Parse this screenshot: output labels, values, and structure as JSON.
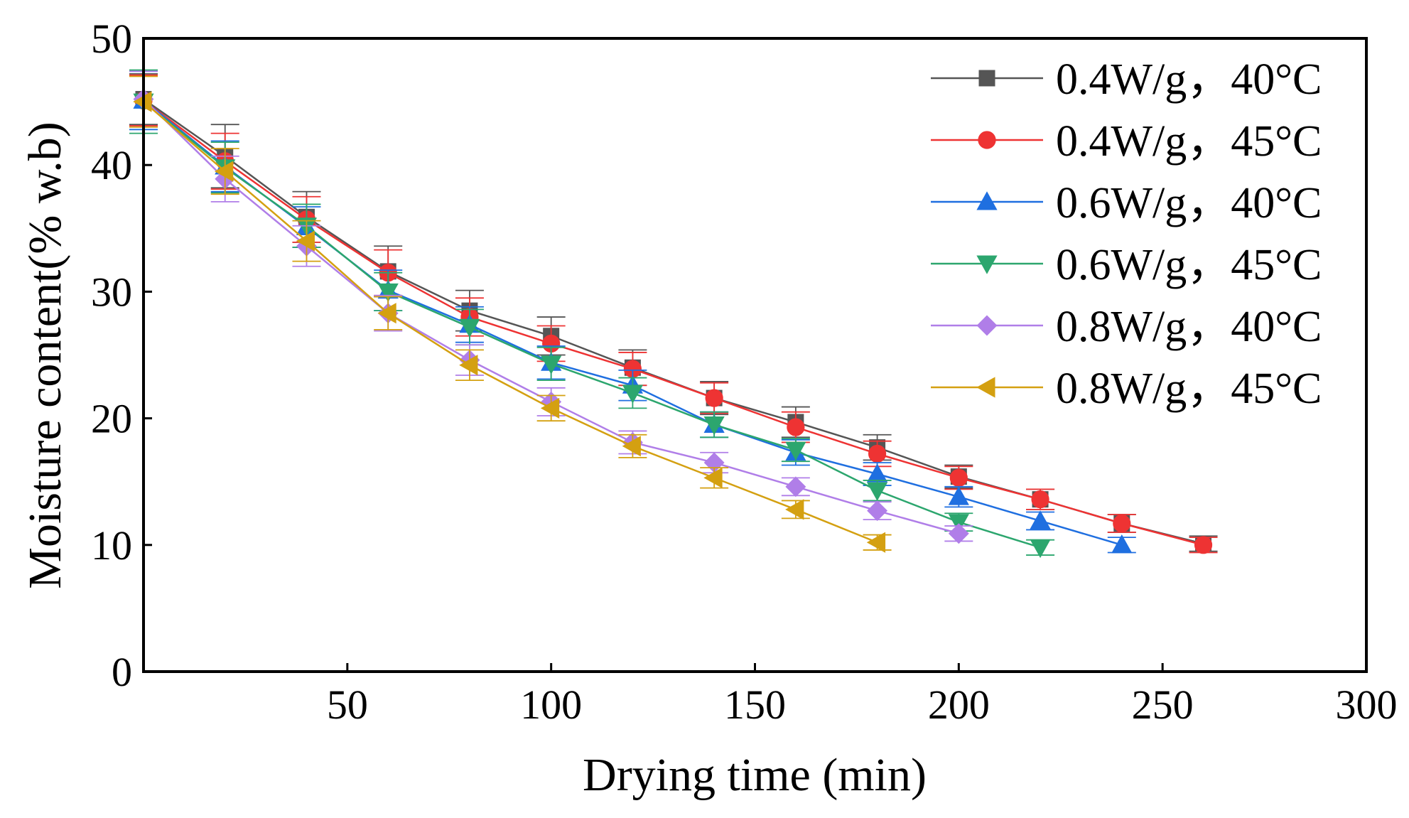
{
  "chart_data": {
    "type": "line",
    "title": "",
    "xlabel": "Drying time (min)",
    "ylabel": "Moisture content(% w.b)",
    "xlim": [
      0,
      300
    ],
    "ylim": [
      0,
      50
    ],
    "xticks": [
      50,
      100,
      150,
      200,
      250,
      300
    ],
    "yticks": [
      0,
      10,
      20,
      30,
      40,
      50
    ],
    "xtick_labels": [
      "50",
      "100",
      "150",
      "200",
      "250",
      "300"
    ],
    "ytick_labels": [
      "0",
      "10",
      "20",
      "30",
      "40",
      "50"
    ],
    "grid": false,
    "legend_position": "top-right",
    "series": [
      {
        "name": "0.4W/g，40°C",
        "color": "#555555",
        "marker": "square",
        "x": [
          0,
          20,
          40,
          60,
          80,
          100,
          120,
          140,
          160,
          180,
          200,
          220,
          240,
          260
        ],
        "y": [
          45.2,
          40.7,
          35.9,
          31.6,
          28.5,
          26.5,
          24.0,
          21.6,
          19.7,
          17.7,
          15.4,
          13.6,
          11.7,
          10.1
        ],
        "err": [
          2.0,
          2.5,
          2.0,
          2.0,
          1.6,
          1.5,
          1.4,
          1.3,
          1.2,
          1.0,
          0.9,
          0.8,
          0.7,
          0.6
        ]
      },
      {
        "name": "0.4W/g，45°C",
        "color": "#ee3333",
        "marker": "circle",
        "x": [
          0,
          20,
          40,
          60,
          80,
          100,
          120,
          140,
          160,
          180,
          200,
          220,
          240,
          260
        ],
        "y": [
          45.1,
          40.3,
          35.7,
          31.5,
          28.0,
          25.9,
          23.9,
          21.6,
          19.3,
          17.2,
          15.3,
          13.6,
          11.7,
          10.0
        ],
        "err": [
          2.0,
          2.2,
          1.8,
          1.8,
          1.5,
          1.4,
          1.3,
          1.2,
          1.2,
          1.0,
          0.9,
          0.8,
          0.7,
          0.6
        ]
      },
      {
        "name": "0.6W/g，40°C",
        "color": "#1f6fe0",
        "marker": "triangle-up",
        "x": [
          0,
          20,
          40,
          60,
          80,
          100,
          120,
          140,
          160,
          180,
          200,
          220,
          240
        ],
        "y": [
          45.1,
          39.9,
          35.1,
          30.1,
          27.4,
          24.4,
          22.6,
          19.5,
          17.3,
          15.6,
          13.8,
          11.9,
          10.0
        ],
        "err": [
          2.3,
          2.0,
          1.6,
          1.6,
          1.4,
          1.3,
          1.2,
          1.0,
          1.0,
          0.9,
          0.8,
          0.7,
          0.6
        ]
      },
      {
        "name": "0.6W/g，45°C",
        "color": "#2ca66e",
        "marker": "triangle-down",
        "x": [
          0,
          20,
          40,
          60,
          80,
          100,
          120,
          140,
          160,
          180,
          200,
          220
        ],
        "y": [
          45.0,
          39.8,
          35.2,
          30.0,
          27.2,
          24.3,
          22.0,
          19.5,
          17.5,
          14.3,
          11.8,
          9.8
        ],
        "err": [
          2.5,
          2.0,
          1.7,
          1.5,
          1.4,
          1.3,
          1.2,
          1.0,
          0.9,
          0.8,
          0.7,
          0.6
        ]
      },
      {
        "name": "0.8W/g，40°C",
        "color": "#b07ee8",
        "marker": "diamond",
        "x": [
          0,
          20,
          40,
          60,
          80,
          100,
          120,
          140,
          160,
          180,
          200
        ],
        "y": [
          45.2,
          38.9,
          33.6,
          28.3,
          24.6,
          21.3,
          18.1,
          16.5,
          14.6,
          12.7,
          10.9
        ],
        "err": [
          2.2,
          1.8,
          1.6,
          1.4,
          1.2,
          1.1,
          0.9,
          0.8,
          0.7,
          0.7,
          0.6
        ]
      },
      {
        "name": "0.8W/g，45°C",
        "color": "#d4a011",
        "marker": "triangle-left",
        "x": [
          0,
          20,
          40,
          60,
          80,
          100,
          120,
          140,
          160,
          180
        ],
        "y": [
          45.0,
          39.5,
          34.0,
          28.3,
          24.2,
          20.8,
          17.8,
          15.3,
          12.8,
          10.2
        ],
        "err": [
          2.0,
          1.8,
          1.6,
          1.3,
          1.2,
          1.0,
          0.9,
          0.8,
          0.7,
          0.6
        ]
      }
    ]
  }
}
